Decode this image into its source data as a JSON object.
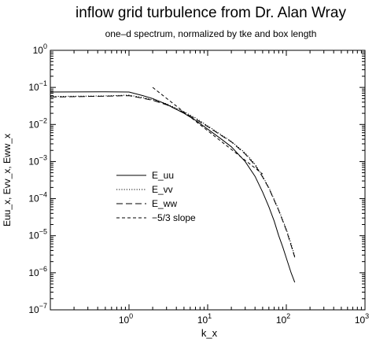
{
  "chart_data": {
    "type": "line",
    "title": "inflow grid turbulence from Dr. Alan Wray",
    "subtitle": "one–d spectrum, normalized by tke and box length",
    "xlabel": "k_x",
    "ylabel": "Euu_x, Evv_x, Eww_x",
    "xscale": "log",
    "yscale": "log",
    "xlim": [
      0.1,
      1000
    ],
    "ylim": [
      1e-07,
      1
    ],
    "grid": false,
    "legend_placement": "center-left",
    "x_ticks": [
      {
        "value": 1,
        "base": "10",
        "exp": "0"
      },
      {
        "value": 10,
        "base": "10",
        "exp": "1"
      },
      {
        "value": 100,
        "base": "10",
        "exp": "2"
      },
      {
        "value": 1000,
        "base": "10",
        "exp": "3"
      }
    ],
    "y_ticks": [
      {
        "value": 1,
        "base": "10",
        "exp": "0"
      },
      {
        "value": 0.1,
        "base": "10",
        "exp": "−1"
      },
      {
        "value": 0.01,
        "base": "10",
        "exp": "−2"
      },
      {
        "value": 0.001,
        "base": "10",
        "exp": "−3"
      },
      {
        "value": 0.0001,
        "base": "10",
        "exp": "−4"
      },
      {
        "value": 1e-05,
        "base": "10",
        "exp": "−5"
      },
      {
        "value": 1e-06,
        "base": "10",
        "exp": "−6"
      },
      {
        "value": 1e-07,
        "base": "10",
        "exp": "−7"
      }
    ],
    "series": [
      {
        "name": "E_uu",
        "dash": "solid",
        "x": [
          0.1,
          0.5,
          1.0,
          1.5,
          2.0,
          3.0,
          5.0,
          7.0,
          10,
          15,
          20,
          30,
          40,
          50,
          60,
          70,
          80,
          90,
          100,
          115,
          128
        ],
        "y": [
          0.075,
          0.076,
          0.075,
          0.06,
          0.05,
          0.035,
          0.02,
          0.013,
          0.0075,
          0.004,
          0.0025,
          0.001,
          0.0004,
          0.00015,
          6e-05,
          2.5e-05,
          1e-05,
          5e-06,
          2.5e-06,
          1e-06,
          5.5e-07
        ]
      },
      {
        "name": "E_vv",
        "dash": "dotted",
        "x": [
          0.1,
          0.5,
          1.0,
          1.5,
          2.0,
          3.0,
          5.0,
          7.0,
          10,
          15,
          20,
          30,
          40,
          50,
          60,
          80,
          100,
          115,
          128
        ],
        "y": [
          0.057,
          0.059,
          0.062,
          0.053,
          0.047,
          0.036,
          0.022,
          0.015,
          0.0092,
          0.0052,
          0.0035,
          0.0017,
          0.00085,
          0.0004,
          0.0002,
          5e-05,
          1.5e-05,
          6e-06,
          2.8e-06
        ]
      },
      {
        "name": "E_ww",
        "dash": "dashed",
        "x": [
          0.1,
          0.5,
          1.0,
          1.5,
          2.0,
          3.0,
          5.0,
          7.0,
          10,
          15,
          20,
          30,
          40,
          50,
          60,
          80,
          100,
          115,
          128
        ],
        "y": [
          0.055,
          0.058,
          0.06,
          0.051,
          0.045,
          0.034,
          0.021,
          0.014,
          0.0088,
          0.005,
          0.0034,
          0.0016,
          0.0008,
          0.00038,
          0.00019,
          4.8e-05,
          1.4e-05,
          5.5e-06,
          2.6e-06
        ]
      },
      {
        "name": "−5/3 slope",
        "dash": "shortdash",
        "x": [
          2.0,
          50
        ],
        "y": [
          0.1,
          0.00046
        ]
      }
    ]
  }
}
